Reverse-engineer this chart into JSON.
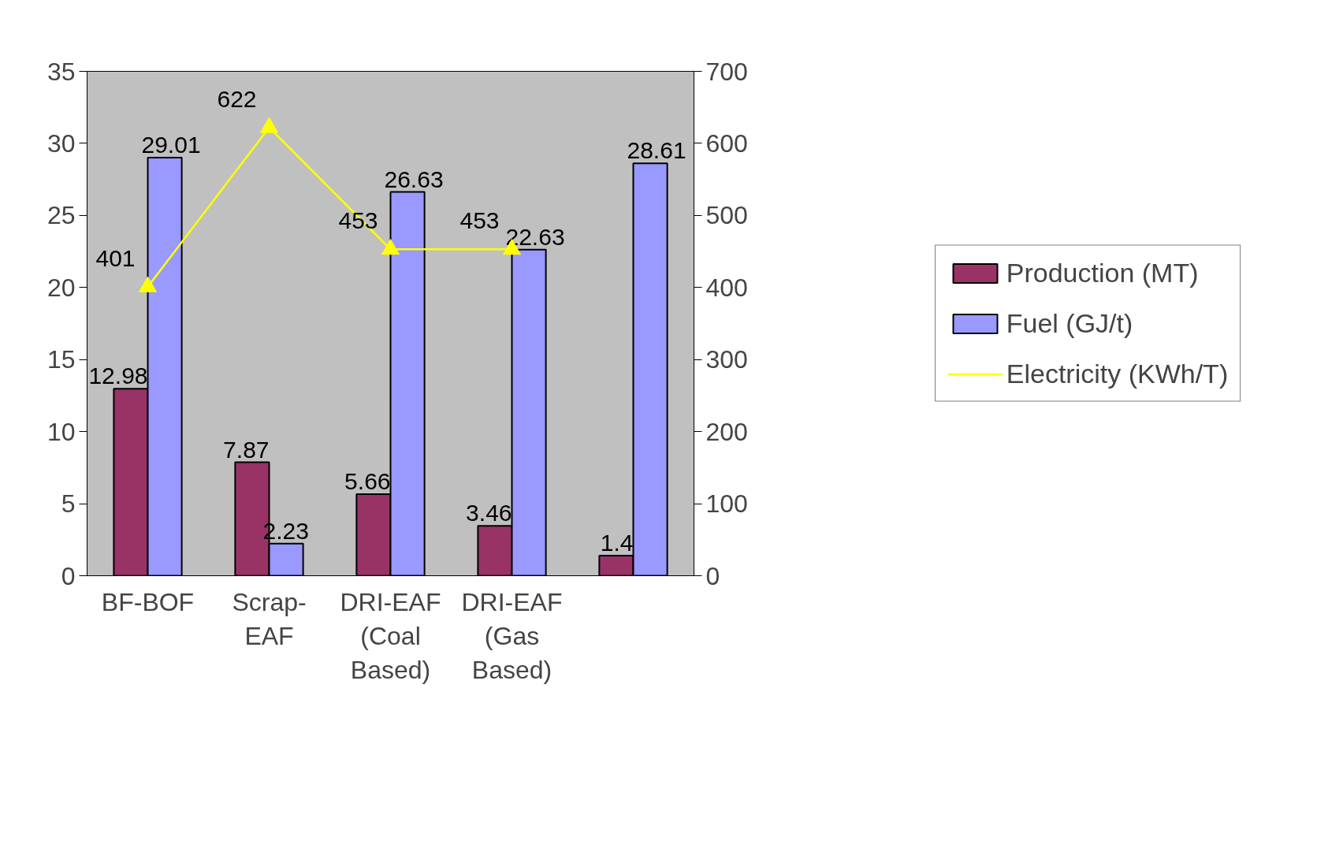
{
  "chart_data": {
    "type": "bar",
    "categories": [
      "BF-BOF",
      "Scrap-EAF",
      "DRI-EAF (Coal Based)",
      "DRI-EAF (Gas Based)",
      null
    ],
    "series": [
      {
        "name": "Production (MT)",
        "color": "#993366",
        "values": [
          12.98,
          7.87,
          5.66,
          3.46,
          1.4
        ]
      },
      {
        "name": "Fuel (GJ/t)",
        "color": "#9999ff",
        "values": [
          29.01,
          2.23,
          26.63,
          22.63,
          28.61
        ]
      },
      {
        "name": "Electricity (KWh/T)",
        "color": "#ffff00",
        "type": "line",
        "axis": "y2",
        "marker": "triangle",
        "values": [
          401,
          622,
          453,
          453,
          null
        ]
      }
    ],
    "ylim": [
      0,
      35
    ],
    "yticks": [
      0,
      5,
      10,
      15,
      20,
      25,
      30,
      35
    ],
    "y2lim": [
      0,
      700
    ],
    "y2ticks": [
      0,
      100,
      200,
      300,
      400,
      500,
      600,
      700
    ],
    "data_labels": true,
    "grid": false,
    "legend": "right"
  }
}
